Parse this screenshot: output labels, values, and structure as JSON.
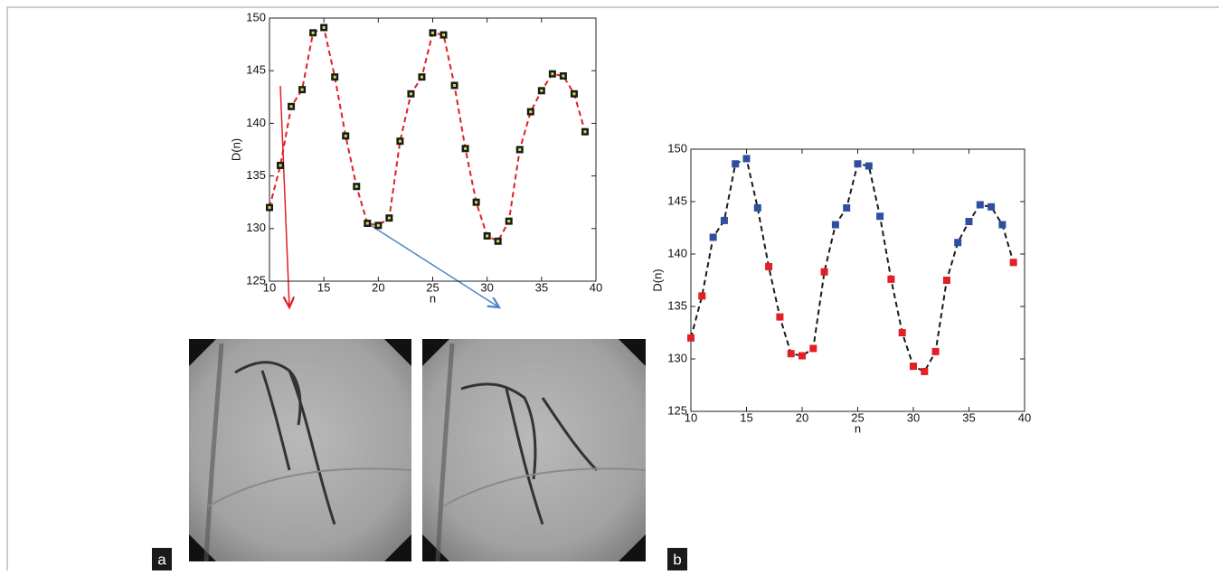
{
  "chart_data": [
    {
      "type": "line",
      "label": "a",
      "xlabel": "n",
      "ylabel": "D(n)",
      "x": [
        10,
        11,
        12,
        13,
        14,
        15,
        16,
        17,
        18,
        19,
        20,
        21,
        22,
        23,
        24,
        25,
        26,
        27,
        28,
        29,
        30,
        31,
        32,
        33,
        34,
        35,
        36,
        37,
        38,
        39
      ],
      "series": [
        {
          "color": "#e31e24",
          "marker_color": "#1a1a1a",
          "values": [
            132,
            136,
            141.6,
            143.2,
            148.6,
            149.1,
            144.4,
            138.8,
            134,
            130.5,
            130.3,
            131,
            138.3,
            142.8,
            144.4,
            148.6,
            148.4,
            143.6,
            137.6,
            132.5,
            129.3,
            128.8,
            130.7,
            137.5,
            141.1,
            143.1,
            144.7,
            144.5,
            142.8,
            139.2
          ]
        }
      ],
      "xlim": [
        10,
        40
      ],
      "xticks": [
        10,
        15,
        20,
        25,
        30,
        35,
        40
      ],
      "ylim": [
        125,
        150
      ],
      "yticks": [
        125,
        130,
        135,
        140,
        145,
        150
      ]
    },
    {
      "type": "line",
      "label": "b",
      "xlabel": "n",
      "ylabel": "D(n)",
      "x": [
        10,
        11,
        12,
        13,
        14,
        15,
        16,
        17,
        18,
        19,
        20,
        21,
        22,
        23,
        24,
        25,
        26,
        27,
        28,
        29,
        30,
        31,
        32,
        33,
        34,
        35,
        36,
        37,
        38,
        39
      ],
      "series": [
        {
          "color": "#1a1a1a",
          "marker_colors": [
            "#e31e24",
            "#e31e24",
            "#2e4fa0",
            "#2e4fa0",
            "#2e4fa0",
            "#2e4fa0",
            "#2e4fa0",
            "#e31e24",
            "#e31e24",
            "#e31e24",
            "#e31e24",
            "#e31e24",
            "#e31e24",
            "#2e4fa0",
            "#2e4fa0",
            "#2e4fa0",
            "#2e4fa0",
            "#2e4fa0",
            "#e31e24",
            "#e31e24",
            "#e31e24",
            "#e31e24",
            "#e31e24",
            "#e31e24",
            "#2e4fa0",
            "#2e4fa0",
            "#2e4fa0",
            "#2e4fa0",
            "#2e4fa0",
            "#e31e24"
          ],
          "values": [
            132,
            136,
            141.6,
            143.2,
            148.6,
            149.1,
            144.4,
            138.8,
            134,
            130.5,
            130.3,
            131,
            138.3,
            142.8,
            144.4,
            148.6,
            148.4,
            143.6,
            137.6,
            132.5,
            129.3,
            128.8,
            130.7,
            137.5,
            141.1,
            143.1,
            144.7,
            144.5,
            142.8,
            139.2
          ]
        }
      ],
      "xlim": [
        10,
        40
      ],
      "xticks": [
        10,
        15,
        20,
        25,
        30,
        35,
        40
      ],
      "ylim": [
        125,
        150
      ],
      "yticks": [
        125,
        130,
        135,
        140,
        145,
        150
      ]
    }
  ]
}
